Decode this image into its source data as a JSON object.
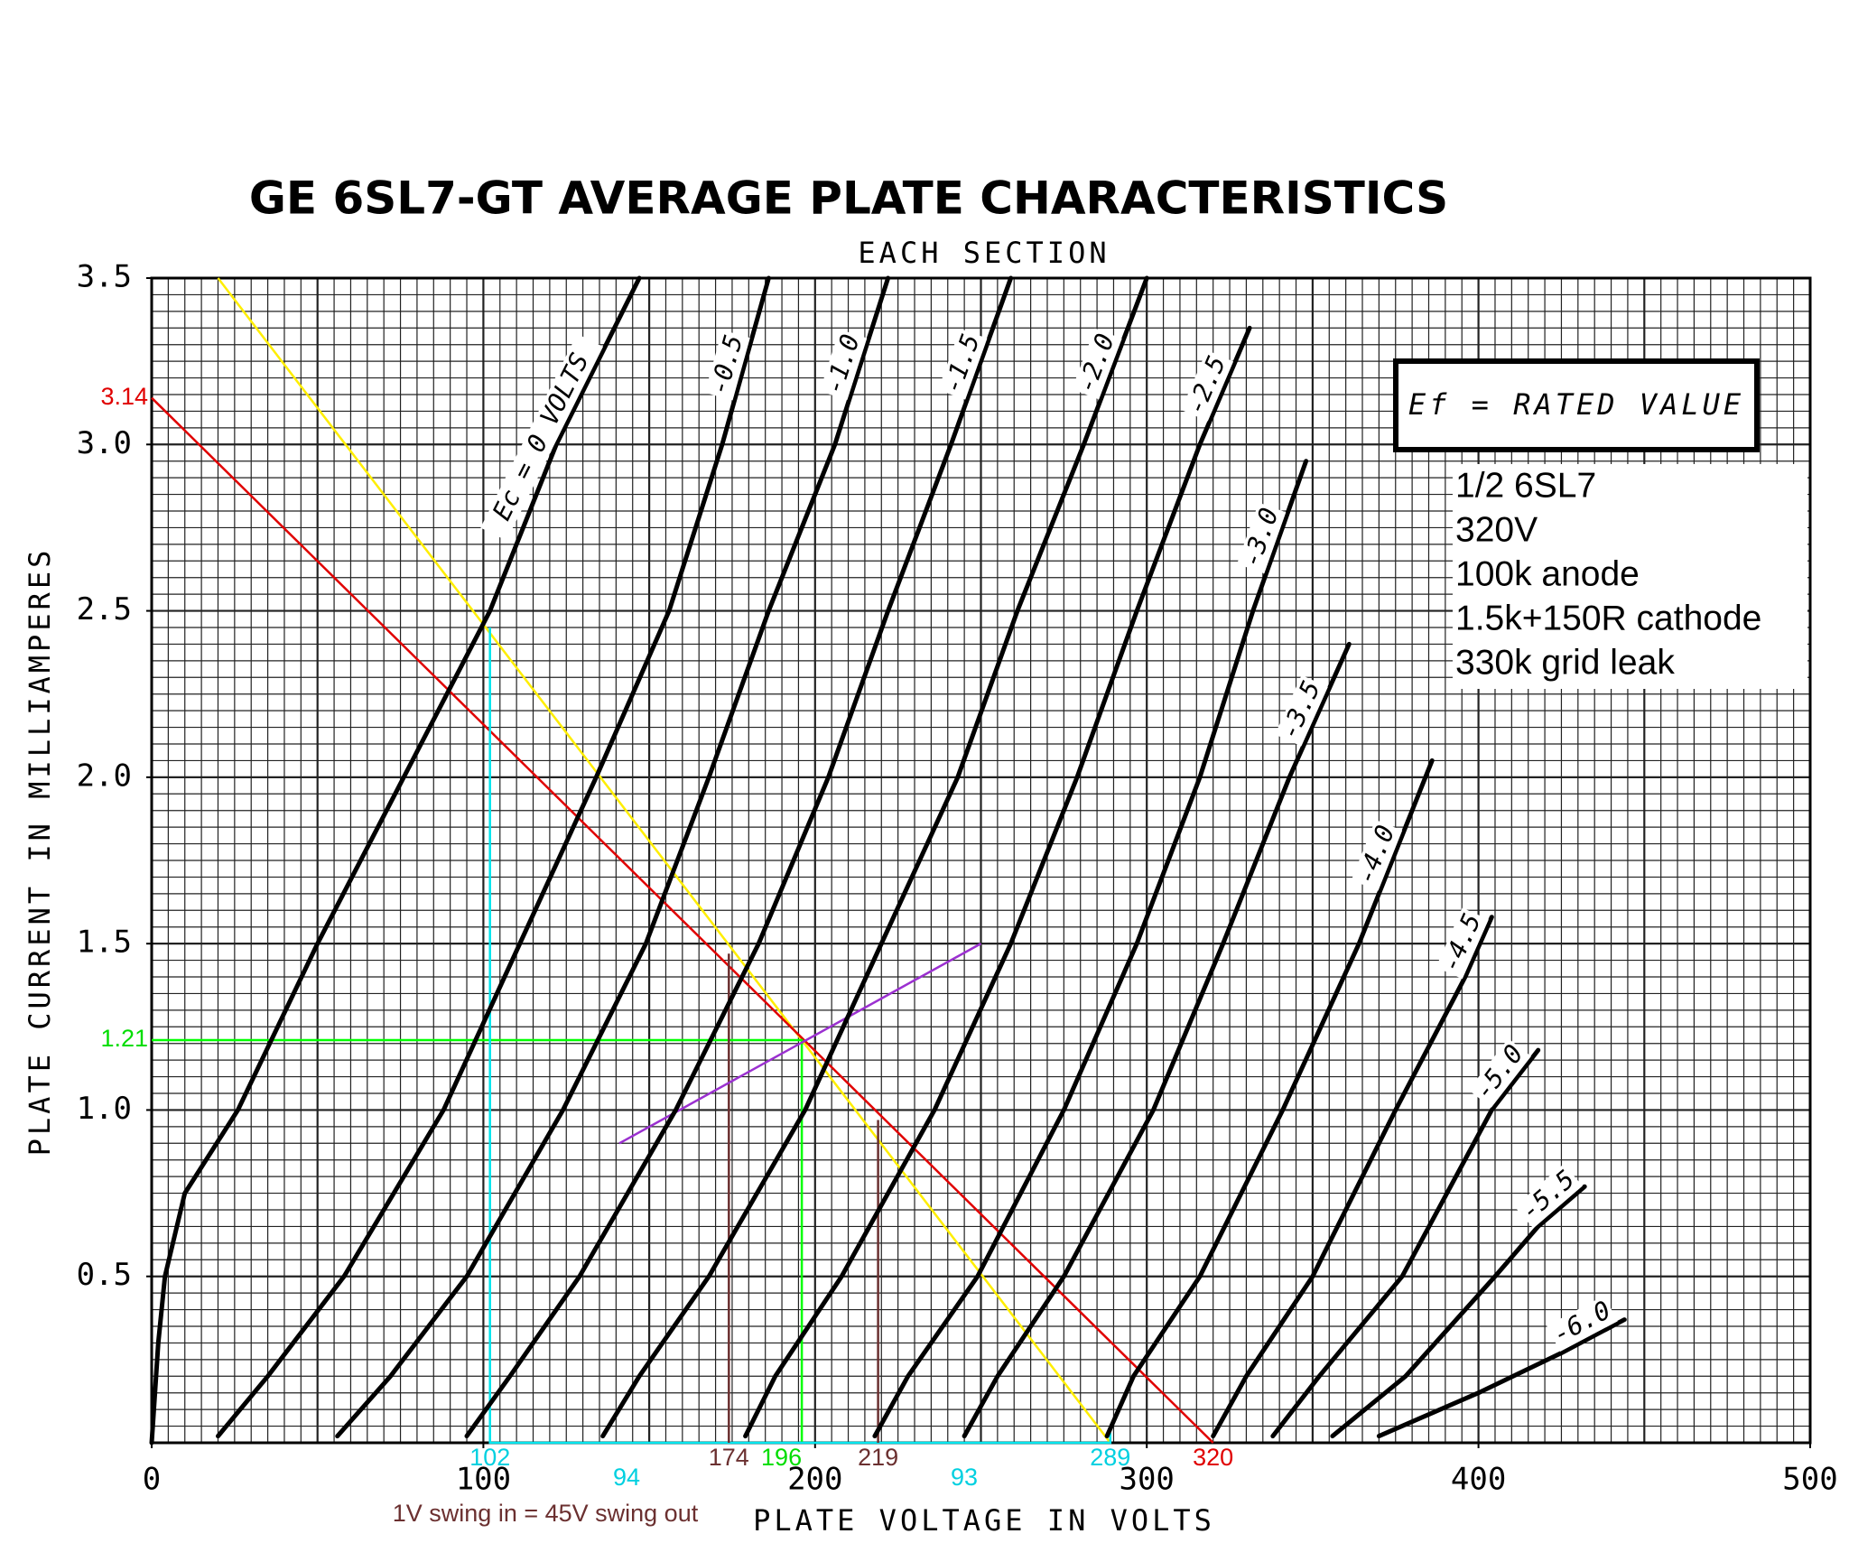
{
  "chart_data": {
    "type": "line",
    "title": "GE 6SL7-GT AVERAGE PLATE CHARACTERISTICS",
    "subtitle": "EACH SECTION",
    "x_label": "PLATE VOLTAGE IN VOLTS",
    "y_label": "PLATE CURRENT IN MILLIAMPERES",
    "xlim": [
      0,
      500
    ],
    "ylim": [
      0,
      3.5
    ],
    "xticks": [
      0,
      100,
      200,
      300,
      400,
      500
    ],
    "yticks": [
      0.5,
      {
        "value": 1,
        "label": "1.0"
      },
      1.5,
      {
        "value": 2,
        "label": "2.0"
      },
      2.5,
      {
        "value": 3,
        "label": "3.0"
      },
      3.5
    ],
    "grid": true,
    "grid_step": {
      "x": 5,
      "y": 0.05
    },
    "series": [
      {
        "name": "Ec = 0 VOLTS",
        "color": "#000000",
        "x": [
          0,
          2,
          4,
          10,
          26,
          50,
          76,
          102,
          122,
          147
        ],
        "values": [
          0,
          0.3,
          0.5,
          0.75,
          1.0,
          1.5,
          2.0,
          2.5,
          3.0,
          3.5
        ]
      },
      {
        "name": "-0.5",
        "color": "#000000",
        "x": [
          20,
          35,
          58,
          88,
          111,
          134,
          156,
          172,
          186
        ],
        "values": [
          0.02,
          0.2,
          0.5,
          1.0,
          1.5,
          2.0,
          2.5,
          3.0,
          3.5
        ]
      },
      {
        "name": "-1.0",
        "color": "#000000",
        "x": [
          56,
          72,
          95,
          124,
          149,
          168,
          186,
          206,
          222
        ],
        "values": [
          0.02,
          0.2,
          0.5,
          1.0,
          1.5,
          2.0,
          2.5,
          3.0,
          3.5
        ]
      },
      {
        "name": "-1.5",
        "color": "#000000",
        "x": [
          95,
          108,
          129,
          158,
          183,
          204,
          222,
          241,
          259
        ],
        "values": [
          0.02,
          0.2,
          0.5,
          1.0,
          1.5,
          2.0,
          2.5,
          3.0,
          3.5
        ]
      },
      {
        "name": "-2.0",
        "color": "#000000",
        "x": [
          136,
          147,
          168,
          197,
          220,
          243,
          261,
          281,
          300
        ],
        "values": [
          0.02,
          0.2,
          0.5,
          1.0,
          1.5,
          2.0,
          2.5,
          3.0,
          3.5
        ]
      },
      {
        "name": "-2.5",
        "color": "#000000",
        "x": [
          179,
          188,
          208,
          236,
          259,
          279,
          297,
          316,
          331
        ],
        "values": [
          0.02,
          0.2,
          0.5,
          1.0,
          1.5,
          2.0,
          2.5,
          3.0,
          3.35
        ]
      },
      {
        "name": "-3.0",
        "color": "#000000",
        "x": [
          218,
          228,
          249,
          275,
          297,
          316,
          332,
          348
        ],
        "values": [
          0.02,
          0.2,
          0.5,
          1.0,
          1.5,
          2.0,
          2.5,
          2.95
        ]
      },
      {
        "name": "-3.5",
        "color": "#000000",
        "x": [
          245,
          255,
          275,
          302,
          323,
          343,
          361
        ],
        "values": [
          0.02,
          0.2,
          0.5,
          1.0,
          1.5,
          2.0,
          2.4
        ]
      },
      {
        "name": "-4.0",
        "color": "#000000",
        "x": [
          288,
          296,
          316,
          341,
          364,
          386
        ],
        "values": [
          0.02,
          0.2,
          0.5,
          1.0,
          1.5,
          2.05
        ]
      },
      {
        "name": "-4.5",
        "color": "#000000",
        "x": [
          320,
          330,
          350,
          375,
          396,
          404
        ],
        "values": [
          0.02,
          0.2,
          0.5,
          1.0,
          1.4,
          1.58
        ]
      },
      {
        "name": "-5.0",
        "color": "#000000",
        "x": [
          338,
          352,
          377,
          404,
          418
        ],
        "values": [
          0.02,
          0.2,
          0.5,
          1.0,
          1.18
        ]
      },
      {
        "name": "-5.5",
        "color": "#000000",
        "x": [
          356,
          378,
          405,
          418,
          432
        ],
        "values": [
          0.02,
          0.2,
          0.5,
          0.65,
          0.77
        ]
      },
      {
        "name": "-6.0",
        "color": "#000000",
        "x": [
          370,
          400,
          425,
          444
        ],
        "values": [
          0.02,
          0.15,
          0.27,
          0.37
        ]
      }
    ],
    "reference_lines": [
      {
        "color": "#ffee00",
        "x": [
          20,
          289
        ],
        "values": [
          3.5,
          0
        ]
      },
      {
        "color": "#e00000",
        "x": [
          0,
          320
        ],
        "values": [
          3.14,
          0
        ]
      },
      {
        "color": "#00ff00",
        "x": [
          0,
          196,
          196
        ],
        "values": [
          1.21,
          1.21,
          0
        ]
      },
      {
        "color": "#00e5ee",
        "x": [
          102,
          102,
          289,
          289
        ],
        "values": [
          2.45,
          0,
          0,
          0.03
        ]
      },
      {
        "color": "#6b3030",
        "x": [
          174,
          174
        ],
        "values": [
          1.47,
          0
        ]
      },
      {
        "color": "#6b3030",
        "x": [
          219,
          219
        ],
        "values": [
          0.97,
          0
        ]
      },
      {
        "color": "#9b30d0",
        "x": [
          141,
          250
        ],
        "values": [
          0.9,
          1.5
        ]
      }
    ],
    "marked_values": [
      {
        "value": 3.14,
        "axis": "y",
        "color": "#e00000"
      },
      {
        "value": 1.21,
        "axis": "y",
        "color": "#00dd00"
      },
      {
        "value": 102,
        "axis": "x",
        "color": "#00d0e0"
      },
      {
        "value": 174,
        "axis": "x",
        "color": "#6b3030"
      },
      {
        "value": 196,
        "axis": "x",
        "color": "#00dd00"
      },
      {
        "value": 219,
        "axis": "x",
        "color": "#6b3030"
      },
      {
        "value": 289,
        "axis": "x",
        "color": "#00d0e0"
      },
      {
        "value": 320,
        "axis": "x",
        "color": "#e00000"
      }
    ],
    "swing_labels": [
      {
        "value": 94,
        "color": "#00d0e0"
      },
      {
        "value": 93,
        "color": "#00d0e0"
      }
    ],
    "swing_note": "1V swing in = 45V swing out",
    "heater_box": "Ef = RATED VALUE",
    "notes": [
      "1/2 6SL7",
      "320V",
      "100k anode",
      "1.5k+150R cathode",
      "330k grid leak"
    ]
  }
}
